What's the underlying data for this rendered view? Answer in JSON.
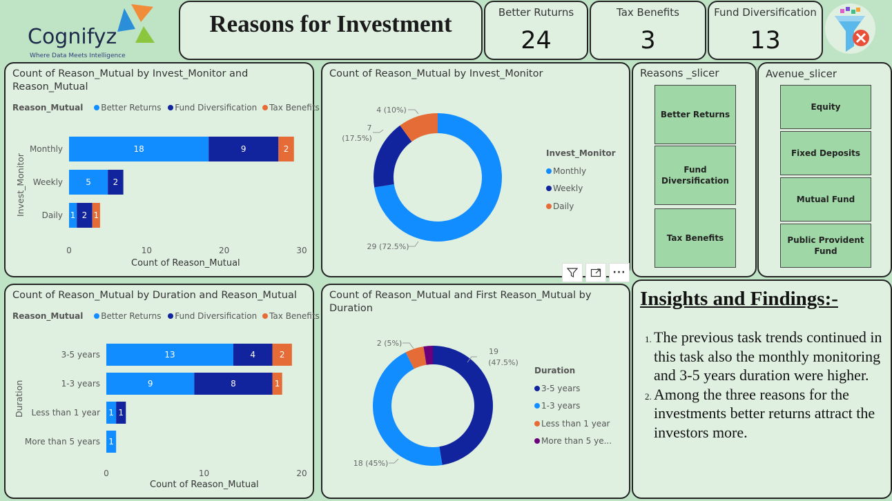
{
  "brand": {
    "name": "Cognifyz",
    "tagline": "Where Data Meets Intelligence"
  },
  "page_title": "Reasons for Investment",
  "kpis": [
    {
      "label": "Better Ruturns",
      "value": "24"
    },
    {
      "label": "Tax Benefits",
      "value": "3"
    },
    {
      "label": "Fund Diversification",
      "value": "13"
    }
  ],
  "colors": {
    "better_returns": "#118dff",
    "fund_diversification": "#12239e",
    "tax_benefits": "#e66c37",
    "more_than_5": "#6b007b"
  },
  "charts": {
    "monitor_bar": {
      "title": "Count of Reason_Mutual by Invest_Monitor and Reason_Mutual",
      "legend_title": "Reason_Mutual",
      "legend": [
        "Better Returns",
        "Fund Diversification",
        "Tax Benefits"
      ],
      "ylabel": "Invest_Monitor",
      "xlabel": "Count of Reason_Mutual"
    },
    "monitor_donut": {
      "title": "Count of Reason_Mutual by Invest_Monitor",
      "legend_title": "Invest_Monitor",
      "legend": [
        "Monthly",
        "Weekly",
        "Daily"
      ]
    },
    "duration_bar": {
      "title": "Count of Reason_Mutual by Duration and Reason_Mutual",
      "legend_title": "Reason_Mutual",
      "legend": [
        "Better Returns",
        "Fund Diversification",
        "Tax Benefits"
      ],
      "ylabel": "Duration",
      "xlabel": "Count of Reason_Mutual"
    },
    "duration_donut": {
      "title": "Count of Reason_Mutual and First Reason_Mutual by Duration",
      "legend_title": "Duration",
      "legend": [
        "3-5 years",
        "1-3 years",
        "Less than 1 year",
        "More than 5 ye..."
      ]
    }
  },
  "chart_data": [
    {
      "type": "bar",
      "title": "Count of Reason_Mutual by Invest_Monitor and Reason_Mutual",
      "categories": [
        "Monthly",
        "Weekly",
        "Daily"
      ],
      "series": [
        {
          "name": "Better Returns",
          "values": [
            18,
            5,
            1
          ]
        },
        {
          "name": "Fund Diversification",
          "values": [
            9,
            2,
            2
          ]
        },
        {
          "name": "Tax Benefits",
          "values": [
            2,
            0,
            1
          ]
        }
      ],
      "xlim": [
        0,
        30
      ],
      "xticks": [
        "0",
        "10",
        "20",
        "30"
      ],
      "xlabel": "Count of Reason_Mutual",
      "ylabel": "Invest_Monitor"
    },
    {
      "type": "pie",
      "title": "Count of Reason_Mutual by Invest_Monitor",
      "categories": [
        "Monthly",
        "Weekly",
        "Daily"
      ],
      "values": [
        29,
        7,
        4
      ],
      "labels": [
        "29 (72.5%)",
        "7",
        "(17.5%)",
        "4 (10%)"
      ]
    },
    {
      "type": "bar",
      "title": "Count of Reason_Mutual by Duration and Reason_Mutual",
      "categories": [
        "3-5 years",
        "1-3 years",
        "Less than 1 year",
        "More than 5 years"
      ],
      "series": [
        {
          "name": "Better Returns",
          "values": [
            13,
            9,
            1,
            1
          ]
        },
        {
          "name": "Fund Diversification",
          "values": [
            4,
            8,
            1,
            0
          ]
        },
        {
          "name": "Tax Benefits",
          "values": [
            2,
            1,
            0,
            0
          ]
        }
      ],
      "xlim": [
        0,
        20
      ],
      "xticks": [
        "0",
        "10",
        "20"
      ],
      "xlabel": "Count of Reason_Mutual",
      "ylabel": "Duration"
    },
    {
      "type": "pie",
      "title": "Count of Reason_Mutual and First Reason_Mutual by Duration",
      "categories": [
        "3-5 years",
        "1-3 years",
        "Less than 1 year",
        "More than 5 years"
      ],
      "values": [
        19,
        18,
        2,
        1
      ],
      "labels": [
        "19",
        "(47.5%)",
        "18 (45%)",
        "2 (5%)"
      ]
    }
  ],
  "slicers": {
    "reasons": {
      "title": "Reasons _slicer",
      "items": [
        "Better Returns",
        "Fund Diversification",
        "Tax Benefits"
      ]
    },
    "avenue": {
      "title": "Avenue_slicer",
      "items": [
        "Equity",
        "Fixed Deposits",
        "Mutual Fund",
        "Public Provident Fund"
      ]
    }
  },
  "insights": {
    "title": "Insights and Findings:-",
    "items": [
      "The previous task trends continued in this task also the monthly monitoring and 3-5 years duration were higher.",
      "Among the three reasons for the investments better returns attract the investors more."
    ]
  },
  "toolbar": {
    "filter_icon": "filter-icon",
    "focus_icon": "focus-mode-icon",
    "more_icon": "more-options-icon",
    "more_label": "···"
  }
}
